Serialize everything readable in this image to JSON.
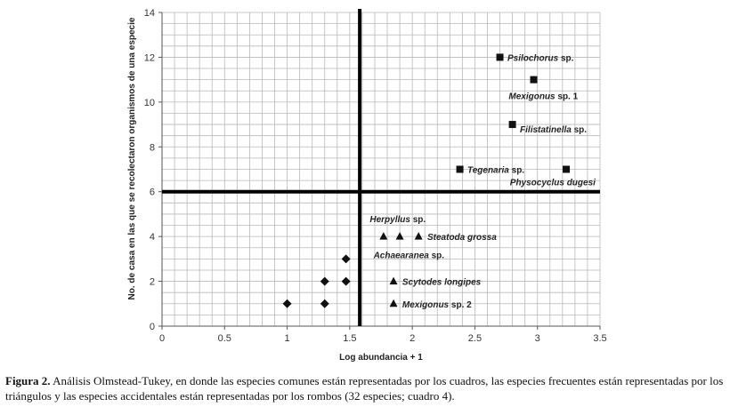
{
  "chart_data": {
    "type": "scatter",
    "xlabel": "Log abundancia  + 1",
    "ylabel": "No. de casa en las que se recolectaron organismos de una especie",
    "xlim": [
      0,
      3.5
    ],
    "ylim": [
      0,
      14
    ],
    "xticks": [
      "0",
      "0.5",
      "1",
      "1.5",
      "2",
      "2.5",
      "3",
      "3.5"
    ],
    "xtick_values": [
      0,
      0.5,
      1,
      1.5,
      2,
      2.5,
      3,
      3.5
    ],
    "yticks": [
      "0",
      "2",
      "4",
      "6",
      "8",
      "10",
      "12",
      "14"
    ],
    "ytick_values": [
      0,
      2,
      4,
      6,
      8,
      10,
      12,
      14
    ],
    "grid": true,
    "divider_lines": {
      "x": 1.58,
      "y": 6
    },
    "series": [
      {
        "marker": "square",
        "points": [
          {
            "x": 2.7,
            "y": 12
          },
          {
            "x": 2.97,
            "y": 11
          },
          {
            "x": 2.8,
            "y": 9
          },
          {
            "x": 2.38,
            "y": 7
          },
          {
            "x": 3.23,
            "y": 7
          }
        ]
      },
      {
        "marker": "triangle",
        "points": [
          {
            "x": 1.77,
            "y": 4
          },
          {
            "x": 1.9,
            "y": 4
          },
          {
            "x": 2.05,
            "y": 4
          },
          {
            "x": 1.85,
            "y": 2
          },
          {
            "x": 1.85,
            "y": 1
          }
        ]
      },
      {
        "marker": "diamond",
        "points": [
          {
            "x": 1.47,
            "y": 3
          },
          {
            "x": 1.3,
            "y": 2
          },
          {
            "x": 1.47,
            "y": 2
          },
          {
            "x": 1.0,
            "y": 1
          },
          {
            "x": 1.3,
            "y": 1
          }
        ]
      }
    ],
    "annotations": [
      {
        "genus": "Psilochorus",
        "rest": " sp.",
        "x": 2.76,
        "y": 12
      },
      {
        "genus": "Mexigonus",
        "rest": " sp. 1",
        "x": 2.77,
        "y": 10.3
      },
      {
        "genus": "Filistatinella",
        "rest": " sp.",
        "x": 2.86,
        "y": 8.8
      },
      {
        "genus": "Tegenaria",
        "rest": " sp.",
        "x": 2.44,
        "y": 7
      },
      {
        "genus": "Physocyclus dugesi",
        "rest": "",
        "x": 2.78,
        "y": 6.45
      },
      {
        "genus": "Herpyllus",
        "rest": " sp.",
        "x": 1.66,
        "y": 4.8
      },
      {
        "genus": "Steatoda grossa",
        "rest": "",
        "x": 2.12,
        "y": 4
      },
      {
        "genus": "Achaearanea",
        "rest": " sp.",
        "x": 1.69,
        "y": 3.2
      },
      {
        "genus": "Scytodes longipes",
        "rest": "",
        "x": 1.92,
        "y": 2
      },
      {
        "genus": "Mexigonus",
        "rest": " sp. 2",
        "x": 1.92,
        "y": 1
      }
    ]
  },
  "caption": {
    "label": "Figura 2.",
    "text": " Análisis Olmstead-Tukey, en donde las especies comunes están representadas por los cuadros, las especies frecuentes están representadas por los triángulos y las especies accidentales están representadas por los rombos (32 especies; cuadro 4)."
  }
}
